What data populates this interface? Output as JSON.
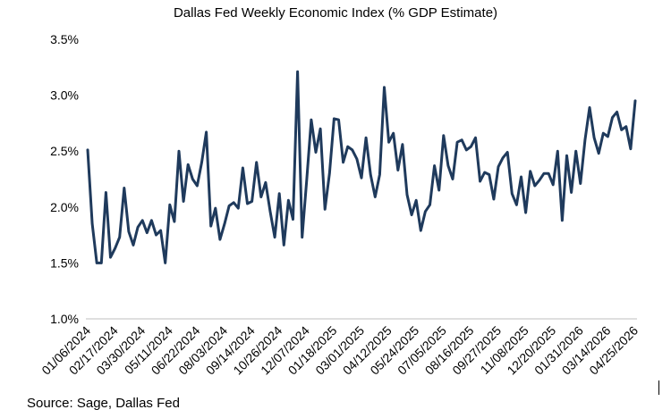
{
  "source_text": "Source: Sage, Dallas Fed",
  "chart_data": {
    "type": "line",
    "title": "Dallas Fed Weekly Economic Index (% GDP Estimate)",
    "xlabel": "",
    "ylabel": "",
    "ylim": [
      1.0,
      3.5
    ],
    "yticks": [
      "1.0%",
      "1.5%",
      "2.0%",
      "2.5%",
      "3.0%",
      "3.5%"
    ],
    "xticks": [
      "01/06/2024",
      "02/17/2024",
      "03/30/2024",
      "05/11/2024",
      "06/22/2024",
      "08/03/2024",
      "09/14/2024",
      "10/26/2024",
      "12/07/2024",
      "01/18/2025",
      "03/01/2025",
      "04/12/2025",
      "05/24/2025",
      "07/05/2025",
      "08/16/2025",
      "09/27/2025",
      "11/08/2025",
      "12/20/2025",
      "01/31/2026",
      "03/14/2026",
      "04/25/2026"
    ],
    "grid": false,
    "legend": "none",
    "color": "#1f3a5c",
    "series": [
      {
        "values": [
          2.51,
          1.85,
          1.5,
          1.5,
          2.13,
          1.55,
          1.63,
          1.73,
          2.17,
          1.78,
          1.66,
          1.82,
          1.88,
          1.77,
          1.88,
          1.75,
          1.79,
          1.5,
          2.02,
          1.87,
          2.5,
          2.05,
          2.38,
          2.25,
          2.19,
          2.4,
          2.67,
          1.83,
          1.99,
          1.71,
          1.85,
          2.01,
          2.04,
          1.99,
          2.35,
          2.03,
          2.05,
          2.4,
          2.09,
          2.22,
          1.96,
          1.73,
          2.12,
          1.66,
          2.06,
          1.89,
          3.21,
          1.73,
          2.24,
          2.78,
          2.49,
          2.7,
          1.98,
          2.3,
          2.79,
          2.78,
          2.4,
          2.54,
          2.51,
          2.43,
          2.26,
          2.62,
          2.29,
          2.09,
          2.29,
          3.07,
          2.58,
          2.66,
          2.33,
          2.56,
          2.11,
          1.93,
          2.06,
          1.79,
          1.96,
          2.02,
          2.37,
          2.15,
          2.64,
          2.37,
          2.25,
          2.58,
          2.6,
          2.51,
          2.54,
          2.62,
          2.23,
          2.31,
          2.29,
          2.07,
          2.36,
          2.44,
          2.49,
          2.12,
          2.02,
          2.27,
          1.95,
          2.32,
          2.19,
          2.24,
          2.3,
          2.3,
          2.2,
          2.5,
          1.88,
          2.46,
          2.13,
          2.5,
          2.21,
          2.6,
          2.89,
          2.62,
          2.48,
          2.66,
          2.63,
          2.8,
          2.85,
          2.69,
          2.72,
          2.52,
          2.95
        ]
      }
    ]
  }
}
